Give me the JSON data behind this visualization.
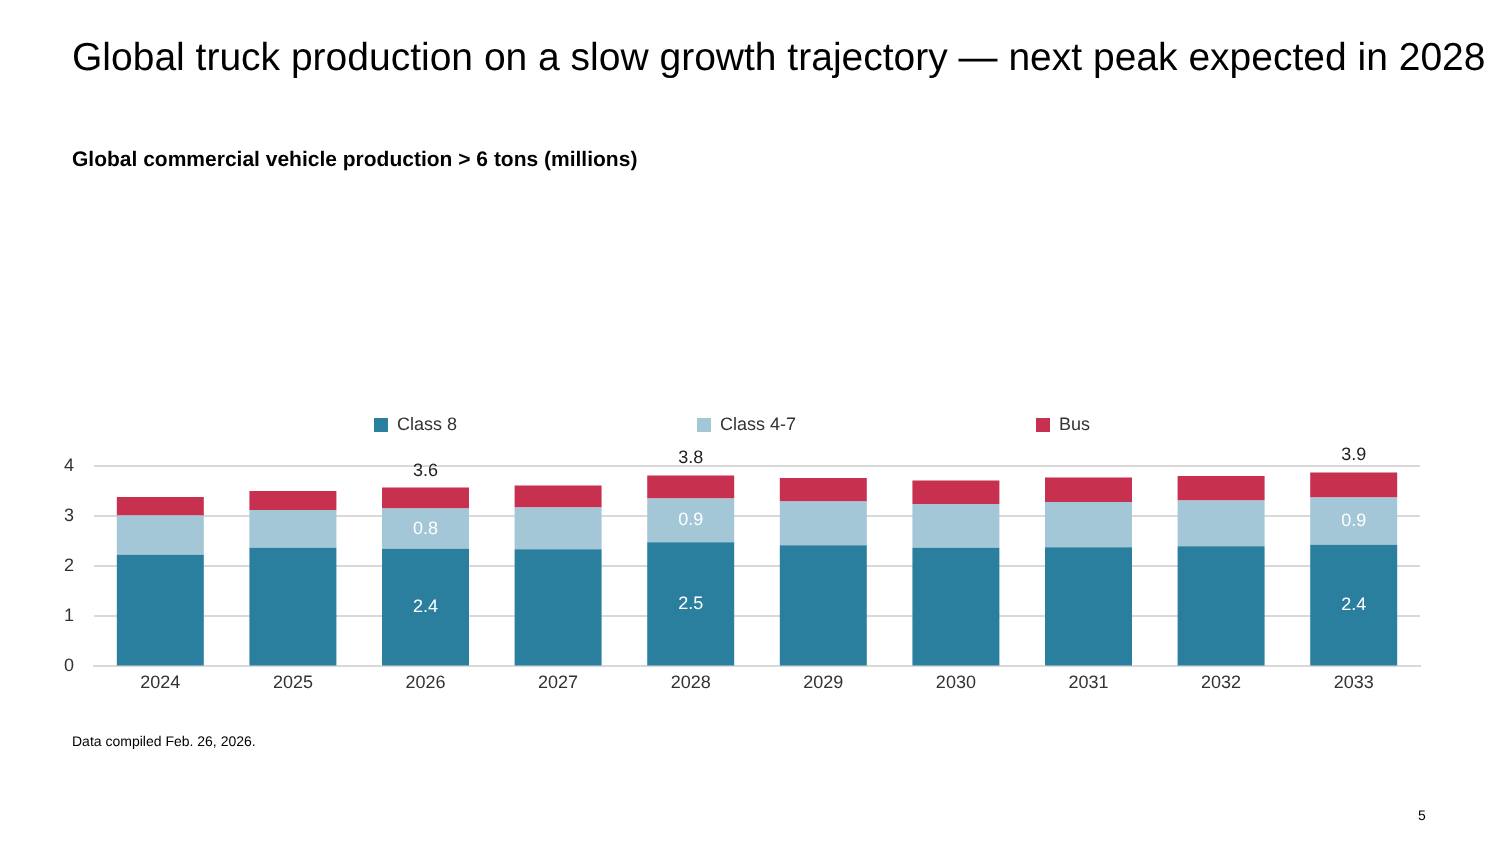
{
  "chart_data": {
    "type": "bar",
    "stacked": true,
    "title": "Global truck production on a slow growth trajectory — next peak expected in 2028",
    "subtitle": "Global commercial vehicle production > 6 tons (millions)",
    "categories": [
      "2024",
      "2025",
      "2026",
      "2027",
      "2028",
      "2029",
      "2030",
      "2031",
      "2032",
      "2033"
    ],
    "series": [
      {
        "name": "Class 8",
        "color": "#2b7f9e",
        "values": [
          2.23,
          2.37,
          2.35,
          2.34,
          2.48,
          2.42,
          2.37,
          2.38,
          2.4,
          2.43
        ],
        "value_labels": [
          null,
          null,
          "2.4",
          null,
          "2.5",
          null,
          null,
          null,
          null,
          "2.4"
        ]
      },
      {
        "name": "Class 4-7",
        "color": "#a3c7d6",
        "values": [
          0.78,
          0.75,
          0.8,
          0.83,
          0.87,
          0.87,
          0.87,
          0.9,
          0.91,
          0.94
        ],
        "value_labels": [
          null,
          null,
          "0.8",
          null,
          "0.9",
          null,
          null,
          null,
          null,
          "0.9"
        ]
      },
      {
        "name": "Bus",
        "color": "#c8304f",
        "values": [
          0.37,
          0.38,
          0.42,
          0.44,
          0.46,
          0.47,
          0.47,
          0.49,
          0.49,
          0.5
        ]
      }
    ],
    "totals": [
      null,
      null,
      "3.6",
      null,
      "3.8",
      null,
      null,
      null,
      null,
      "3.9"
    ],
    "ylim": [
      0,
      4
    ],
    "yticks": [
      0,
      1,
      2,
      3,
      4
    ],
    "grid": "y",
    "legend": "top",
    "annotations": [
      "Data compiled Feb. 26, 2026.",
      "5"
    ]
  }
}
